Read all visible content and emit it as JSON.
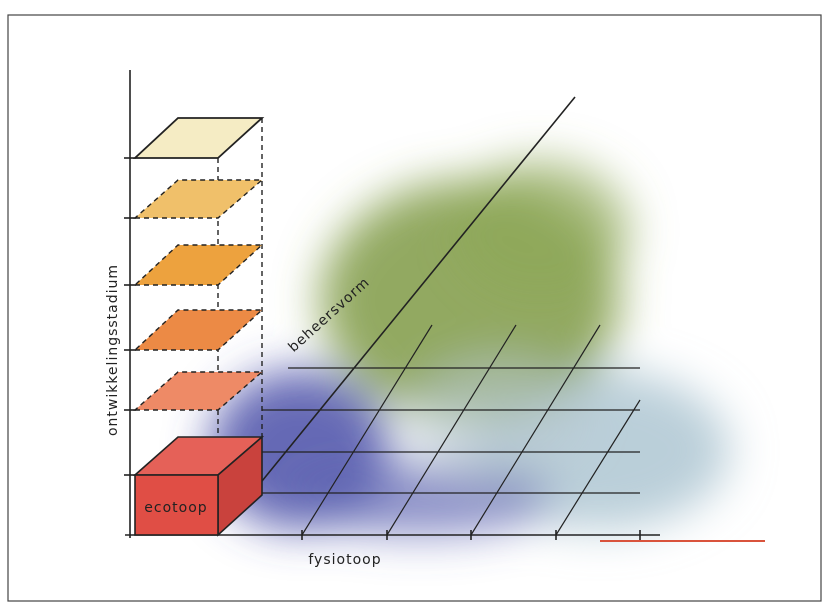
{
  "axes": {
    "vertical": "ontwikkelingsstadium",
    "diagonal": "beheersvorm",
    "horizontal": "fysiotoop"
  },
  "box": {
    "label": "ecotoop"
  }
}
